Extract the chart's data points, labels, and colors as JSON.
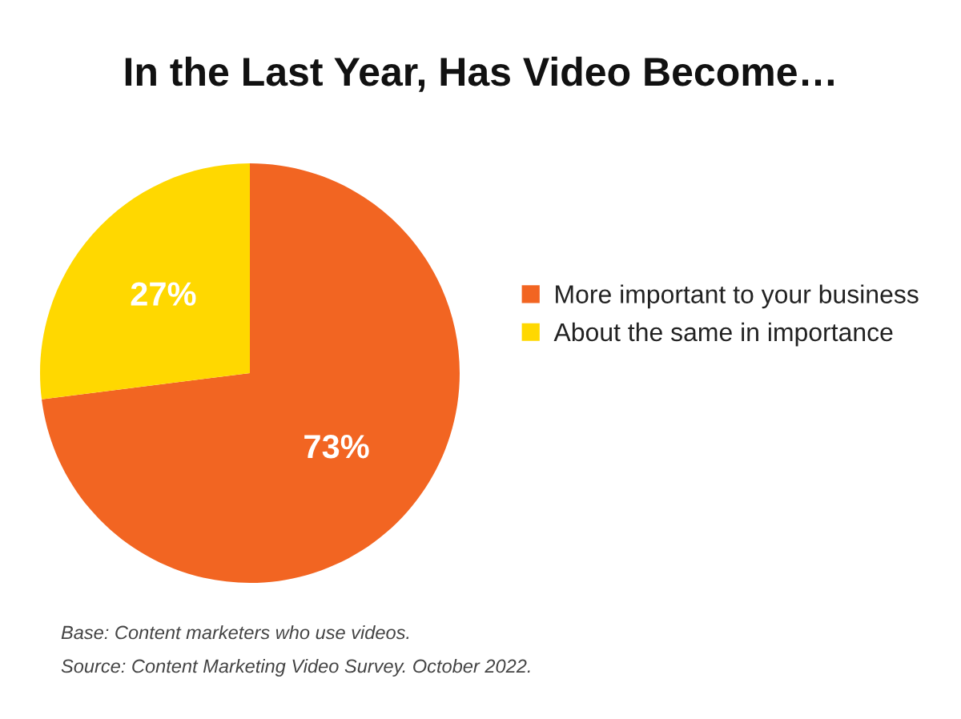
{
  "chart_data": {
    "type": "pie",
    "title": "In the Last Year, Has Video Become…",
    "categories": [
      "More important to your business",
      "About the same in importance"
    ],
    "values": [
      73,
      27
    ],
    "colors": [
      "#f26522",
      "#ffd800"
    ],
    "value_labels": [
      "73%",
      "27%"
    ],
    "legend": "right",
    "annotations": [
      "Base: Content marketers who use videos.",
      "Source: Content Marketing Video Survey. October 2022."
    ]
  }
}
